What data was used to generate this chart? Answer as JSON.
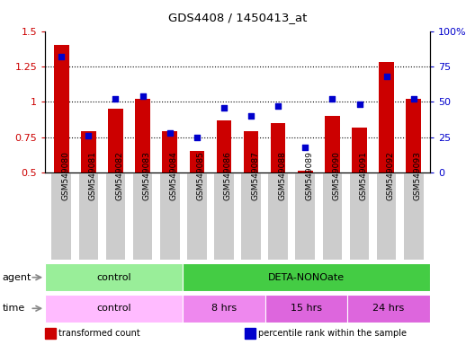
{
  "title": "GDS4408 / 1450413_at",
  "samples": [
    "GSM549080",
    "GSM549081",
    "GSM549082",
    "GSM549083",
    "GSM549084",
    "GSM549085",
    "GSM549086",
    "GSM549087",
    "GSM549088",
    "GSM549089",
    "GSM549090",
    "GSM549091",
    "GSM549092",
    "GSM549093"
  ],
  "transformed_count": [
    1.4,
    0.79,
    0.95,
    1.02,
    0.79,
    0.65,
    0.87,
    0.79,
    0.85,
    0.51,
    0.9,
    0.82,
    1.28,
    1.02
  ],
  "percentile_rank": [
    82,
    26,
    52,
    54,
    28,
    25,
    46,
    40,
    47,
    18,
    52,
    48,
    68,
    52
  ],
  "bar_color": "#cc0000",
  "dot_color": "#0000cc",
  "ylim_left": [
    0.5,
    1.5
  ],
  "ylim_right": [
    0,
    100
  ],
  "yticks_left": [
    0.5,
    0.75,
    1.0,
    1.25,
    1.5
  ],
  "ytick_labels_left": [
    "0.5",
    "0.75",
    "1",
    "1.25",
    "1.5"
  ],
  "yticks_right": [
    0,
    25,
    50,
    75,
    100
  ],
  "ytick_labels_right": [
    "0",
    "25",
    "50",
    "75",
    "100%"
  ],
  "hlines": [
    0.75,
    1.0,
    1.25
  ],
  "agent_groups": [
    {
      "label": "control",
      "start": 0,
      "end": 5,
      "color": "#99ee99"
    },
    {
      "label": "DETA-NONOate",
      "start": 5,
      "end": 14,
      "color": "#44cc44"
    }
  ],
  "time_groups": [
    {
      "label": "control",
      "start": 0,
      "end": 5,
      "color": "#ffbbff"
    },
    {
      "label": "8 hrs",
      "start": 5,
      "end": 8,
      "color": "#ee88ee"
    },
    {
      "label": "15 hrs",
      "start": 8,
      "end": 11,
      "color": "#dd66dd"
    },
    {
      "label": "24 hrs",
      "start": 11,
      "end": 14,
      "color": "#dd66dd"
    }
  ],
  "legend_items": [
    {
      "color": "#cc0000",
      "label": "transformed count"
    },
    {
      "color": "#0000cc",
      "label": "percentile rank within the sample"
    }
  ],
  "tick_label_bg": "#cccccc"
}
